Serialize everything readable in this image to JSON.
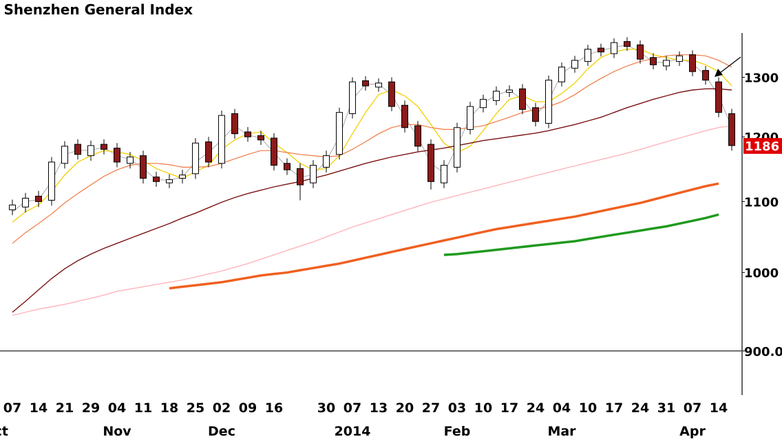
{
  "chart_data": {
    "type": "candlestick",
    "title": "Shenzhen General Index",
    "categories": [
      "07",
      null,
      "14",
      null,
      "21",
      null,
      "29",
      null,
      "04",
      null,
      "11",
      null,
      "18",
      null,
      "25",
      null,
      "02",
      null,
      "09",
      null,
      "16",
      null,
      null,
      null,
      "30",
      null,
      "07",
      null,
      "13",
      null,
      "20",
      null,
      "27",
      null,
      "03",
      null,
      "10",
      null,
      "17",
      null,
      "24",
      null,
      "04",
      null,
      "10",
      null,
      "17",
      null,
      "24",
      null,
      "31",
      null,
      "07",
      null,
      "14",
      null
    ],
    "months": [
      "Oct",
      null,
      null,
      null,
      null,
      null,
      null,
      null,
      "Nov",
      null,
      null,
      null,
      null,
      null,
      null,
      null,
      "Dec",
      null,
      null,
      null,
      null,
      null,
      null,
      null,
      null,
      null,
      "2014",
      null,
      null,
      null,
      null,
      null,
      null,
      null,
      "Feb",
      null,
      null,
      null,
      null,
      null,
      null,
      null,
      "Mar",
      null,
      null,
      null,
      null,
      null,
      null,
      null,
      null,
      null,
      "Apr",
      null,
      null,
      null
    ],
    "open": [
      1088,
      1092,
      1108,
      1102,
      1158,
      1188,
      1170,
      1188,
      1182,
      1158,
      1170,
      1137,
      1128,
      1135,
      1142,
      1192,
      1158,
      1238,
      1208,
      1202,
      1198,
      1158,
      1150,
      1128,
      1152,
      1172,
      1238,
      1294,
      1283,
      1292,
      1252,
      1218,
      1188,
      1128,
      1152,
      1212,
      1248,
      1260,
      1274,
      1280,
      1248,
      1222,
      1292,
      1316,
      1328,
      1352,
      1342,
      1364,
      1358,
      1335,
      1320,
      1328,
      1340,
      1312,
      1292,
      1238
    ],
    "high": [
      1103,
      1113,
      1116,
      1168,
      1193,
      1196,
      1194,
      1196,
      1190,
      1176,
      1178,
      1145,
      1141,
      1148,
      1198,
      1200,
      1243,
      1246,
      1216,
      1210,
      1206,
      1166,
      1158,
      1163,
      1178,
      1248,
      1300,
      1302,
      1298,
      1300,
      1260,
      1226,
      1196,
      1163,
      1223,
      1258,
      1270,
      1284,
      1286,
      1288,
      1256,
      1303,
      1326,
      1338,
      1358,
      1360,
      1370,
      1372,
      1366,
      1343,
      1338,
      1346,
      1348,
      1320,
      1300,
      1246
    ],
    "low": [
      1080,
      1084,
      1092,
      1094,
      1150,
      1164,
      1162,
      1172,
      1152,
      1150,
      1127,
      1122,
      1120,
      1127,
      1134,
      1152,
      1150,
      1197,
      1192,
      1187,
      1147,
      1140,
      1102,
      1120,
      1144,
      1164,
      1230,
      1277,
      1275,
      1242,
      1207,
      1177,
      1118,
      1120,
      1144,
      1204,
      1240,
      1252,
      1266,
      1237,
      1217,
      1214,
      1284,
      1308,
      1320,
      1337,
      1334,
      1347,
      1324,
      1314,
      1312,
      1320,
      1302,
      1287,
      1232,
      1178
    ],
    "close": [
      1095,
      1105,
      1100,
      1160,
      1185,
      1172,
      1186,
      1180,
      1160,
      1168,
      1135,
      1130,
      1133,
      1140,
      1190,
      1160,
      1235,
      1205,
      1200,
      1195,
      1155,
      1148,
      1125,
      1155,
      1170,
      1240,
      1292,
      1285,
      1290,
      1250,
      1215,
      1185,
      1130,
      1155,
      1215,
      1250,
      1262,
      1276,
      1278,
      1245,
      1225,
      1295,
      1318,
      1330,
      1350,
      1345,
      1362,
      1355,
      1332,
      1322,
      1330,
      1338,
      1310,
      1295,
      1240,
      1186
    ],
    "up_color": "#ffffff",
    "down_color": "#8b1a1a",
    "last_label_color": "#e00000",
    "series": [
      {
        "color": "#a8a8a8",
        "width": 1,
        "values": [
          1085,
          1100,
          1103,
          1130,
          1172,
          1178,
          1179,
          1183,
          1170,
          1164,
          1150,
          1133,
          1132,
          1137,
          1160,
          1175,
          1195,
          1218,
          1203,
          1198,
          1175,
          1152,
          1137,
          1140,
          1162,
          1200,
          1262,
          1288,
          1288,
          1270,
          1232,
          1200,
          1158,
          1143,
          1185,
          1232,
          1256,
          1269,
          1277,
          1262,
          1235,
          1260,
          1306,
          1324,
          1340,
          1348,
          1353,
          1358,
          1344,
          1327,
          1326,
          1334,
          1324,
          1303,
          1268,
          1215
        ]
      },
      {
        "color": "#f2d000",
        "width": 1.3,
        "values": [
          1070,
          1085,
          1095,
          1115,
          1140,
          1160,
          1170,
          1178,
          1176,
          1172,
          1162,
          1150,
          1142,
          1135,
          1145,
          1155,
          1180,
          1195,
          1205,
          1208,
          1190,
          1175,
          1158,
          1148,
          1150,
          1170,
          1205,
          1240,
          1270,
          1278,
          1268,
          1250,
          1220,
          1190,
          1175,
          1185,
          1210,
          1238,
          1262,
          1268,
          1258,
          1258,
          1272,
          1290,
          1315,
          1335,
          1345,
          1350,
          1350,
          1340,
          1335,
          1330,
          1330,
          1322,
          1310,
          1285
        ]
      },
      {
        "color": "#f07840",
        "width": 1.2,
        "values": [
          1040,
          1055,
          1068,
          1082,
          1098,
          1112,
          1125,
          1138,
          1148,
          1155,
          1158,
          1158,
          1156,
          1152,
          1152,
          1153,
          1158,
          1165,
          1172,
          1178,
          1178,
          1175,
          1172,
          1170,
          1168,
          1170,
          1180,
          1192,
          1205,
          1215,
          1220,
          1220,
          1215,
          1212,
          1212,
          1215,
          1218,
          1225,
          1232,
          1240,
          1245,
          1250,
          1258,
          1270,
          1285,
          1298,
          1310,
          1320,
          1328,
          1333,
          1338,
          1340,
          1340,
          1338,
          1330,
          1318
        ]
      },
      {
        "color": "#7a1010",
        "width": 1.4,
        "values": [
          948,
          962,
          977,
          992,
          1005,
          1016,
          1025,
          1033,
          1040,
          1047,
          1054,
          1061,
          1068,
          1076,
          1083,
          1091,
          1099,
          1106,
          1112,
          1117,
          1122,
          1126,
          1130,
          1135,
          1140,
          1146,
          1152,
          1158,
          1163,
          1168,
          1172,
          1176,
          1179,
          1182,
          1186,
          1190,
          1194,
          1197,
          1200,
          1203,
          1206,
          1210,
          1215,
          1220,
          1226,
          1232,
          1240,
          1248,
          1255,
          1262,
          1268,
          1274,
          1278,
          1280,
          1280,
          1278
        ]
      },
      {
        "color": "#ffb4bc",
        "width": 1.4,
        "values": [
          944,
          948,
          952,
          955,
          958,
          962,
          966,
          970,
          975,
          978,
          981,
          984,
          987,
          990,
          994,
          998,
          1002,
          1007,
          1012,
          1018,
          1024,
          1030,
          1036,
          1042,
          1049,
          1056,
          1063,
          1069,
          1075,
          1081,
          1087,
          1093,
          1099,
          1104,
          1109,
          1114,
          1119,
          1124,
          1129,
          1134,
          1139,
          1144,
          1149,
          1154,
          1159,
          1164,
          1169,
          1174,
          1180,
          1186,
          1192,
          1198,
          1204,
          1210,
          1215,
          1218
        ]
      },
      {
        "color": "#f06020",
        "width": 3.5,
        "values": [
          null,
          null,
          null,
          null,
          null,
          null,
          null,
          null,
          null,
          null,
          null,
          null,
          979,
          981,
          983,
          985,
          987,
          990,
          993,
          996,
          998,
          1000,
          1003,
          1006,
          1009,
          1012,
          1016,
          1020,
          1024,
          1028,
          1032,
          1036,
          1040,
          1044,
          1048,
          1052,
          1056,
          1060,
          1063,
          1066,
          1069,
          1072,
          1075,
          1078,
          1082,
          1086,
          1090,
          1094,
          1098,
          1103,
          1108,
          1113,
          1118,
          1123,
          1127,
          null
        ]
      },
      {
        "color": "#1f9a1f",
        "width": 3.5,
        "values": [
          null,
          null,
          null,
          null,
          null,
          null,
          null,
          null,
          null,
          null,
          null,
          null,
          null,
          null,
          null,
          null,
          null,
          null,
          null,
          null,
          null,
          null,
          null,
          null,
          null,
          null,
          null,
          null,
          null,
          null,
          null,
          null,
          null,
          1024,
          1025,
          1027,
          1029,
          1031,
          1033,
          1035,
          1037,
          1039,
          1041,
          1043,
          1046,
          1049,
          1052,
          1055,
          1058,
          1061,
          1064,
          1068,
          1072,
          1076,
          1081,
          null
        ]
      }
    ],
    "ylim": [
      860,
      1390
    ],
    "yticks": [
      {
        "value": 900,
        "label": "900.0"
      },
      1000,
      1100,
      1200,
      1300
    ],
    "log_scale": true,
    "y_axis": "right"
  }
}
